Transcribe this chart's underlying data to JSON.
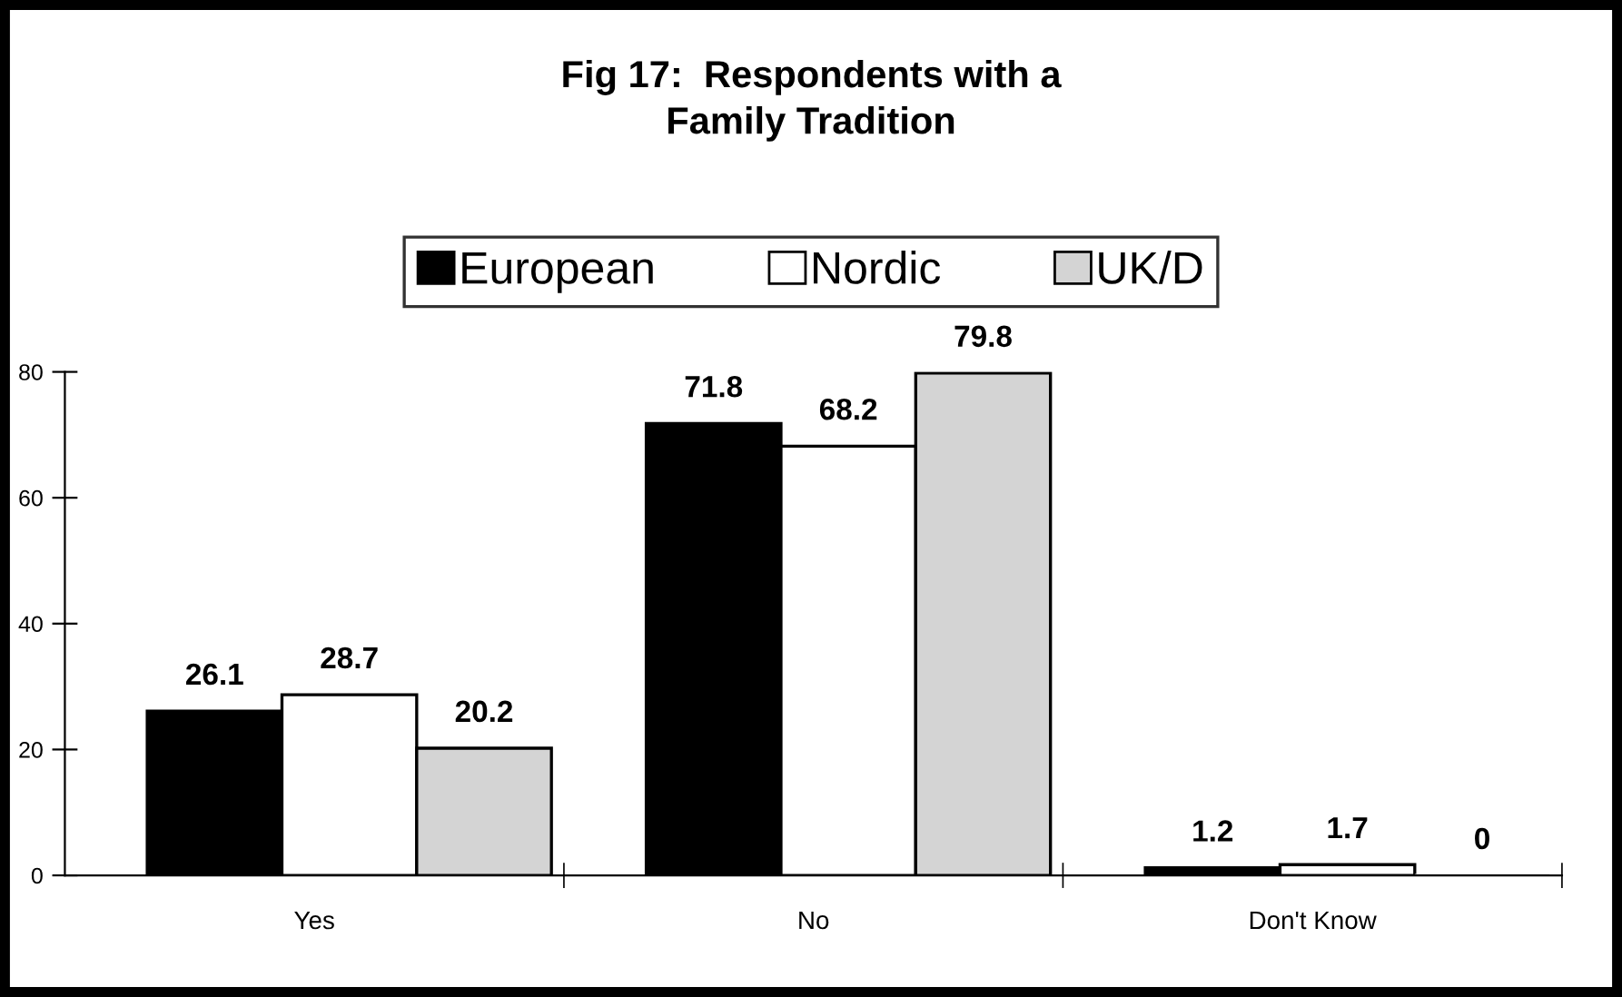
{
  "chart_data": {
    "type": "bar",
    "title": "Fig 17:  Respondents with a\nFamily Tradition",
    "categories": [
      "Yes",
      "No",
      "Don't Know"
    ],
    "series": [
      {
        "name": "European",
        "color": "#000000",
        "values": [
          26.1,
          71.8,
          1.2
        ]
      },
      {
        "name": "Nordic",
        "color": "#ffffff",
        "values": [
          28.7,
          68.2,
          1.7
        ]
      },
      {
        "name": "UK/D",
        "color": "#d4d4d4",
        "values": [
          20.2,
          79.8,
          0
        ]
      }
    ],
    "ylim": [
      0,
      80
    ],
    "yticks": [
      0,
      20,
      40,
      60,
      80
    ],
    "grid": false,
    "legend": "top",
    "data_labels": true
  }
}
